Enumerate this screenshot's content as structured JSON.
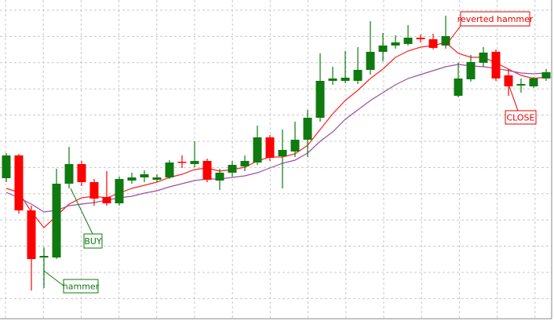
{
  "chart_data": {
    "type": "candlestick",
    "ylim": [
      0,
      400
    ],
    "up_color": "#0f7a0f",
    "down_color": "#ff0000",
    "grid": true,
    "open": [
      179,
      208,
      138,
      78,
      78,
      172,
      197,
      174,
      155,
      147,
      176,
      180,
      177,
      180,
      200,
      197,
      201,
      176,
      186,
      194,
      199,
      231,
      207,
      213,
      228,
      256,
      303,
      303,
      303,
      317,
      340,
      348,
      350,
      358,
      356,
      348,
      284,
      305,
      326,
      340,
      310,
      297,
      296,
      306
    ],
    "close": [
      208,
      138,
      76,
      80,
      172,
      197,
      174,
      153,
      147,
      178,
      180,
      184,
      180,
      199,
      199,
      201,
      177,
      186,
      196,
      201,
      231,
      205,
      215,
      228,
      256,
      303,
      306,
      307,
      317,
      340,
      348,
      352,
      358,
      356,
      345,
      360,
      306,
      327,
      339,
      306,
      296,
      299,
      306,
      314
    ],
    "high": [
      211,
      210,
      144,
      91,
      191,
      219,
      201,
      178,
      188,
      181,
      186,
      189,
      184,
      202,
      208,
      226,
      204,
      191,
      201,
      208,
      246,
      234,
      241,
      251,
      266,
      338,
      321,
      341,
      346,
      379,
      364,
      361,
      374,
      362,
      363,
      386,
      326,
      336,
      346,
      343,
      318,
      306,
      308,
      318
    ],
    "low": [
      174,
      134,
      36,
      39,
      76,
      166,
      169,
      144,
      144,
      144,
      172,
      174,
      174,
      178,
      192,
      193,
      174,
      164,
      181,
      188,
      196,
      201,
      166,
      206,
      206,
      251,
      298,
      300,
      299,
      311,
      328,
      344,
      348,
      352,
      343,
      344,
      282,
      302,
      321,
      303,
      284,
      288,
      294,
      303
    ],
    "lines": [
      {
        "color": "#ff2020",
        "values": [
          166,
          161,
          136,
          116,
          131,
          146,
          154,
          156,
          154,
          160,
          166,
          170,
          174,
          180,
          184,
          190,
          192,
          188,
          190,
          193,
          201,
          206,
          206,
          210,
          221,
          241,
          261,
          278,
          291,
          306,
          318,
          333,
          341,
          346,
          348,
          352,
          338,
          333,
          333,
          326,
          318,
          310,
          306,
          308
        ]
      },
      {
        "color": "#9b4fa8",
        "values": [
          161,
          154,
          146,
          136,
          138,
          144,
          146,
          148,
          151,
          154,
          156,
          160,
          163,
          168,
          172,
          176,
          178,
          178,
          180,
          182,
          186,
          192,
          198,
          202,
          211,
          226,
          238,
          254,
          266,
          278,
          288,
          298,
          306,
          311,
          316,
          321,
          324,
          322,
          321,
          319,
          316,
          313,
          312,
          313
        ]
      }
    ],
    "annotations": [
      {
        "text": "reverted hammer",
        "color": "#e00000"
      },
      {
        "text": "CLOSE",
        "color": "#e00000"
      },
      {
        "text": "BUY",
        "color": "#0f7a0f"
      },
      {
        "text": "hammer",
        "color": "#0f7a0f"
      }
    ]
  }
}
